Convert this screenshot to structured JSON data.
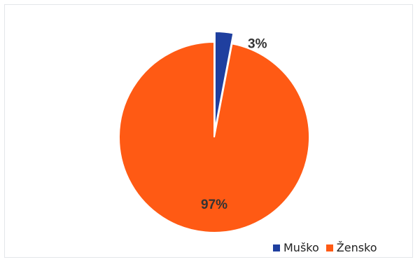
{
  "chart_data": {
    "type": "pie",
    "title": "",
    "slices": [
      {
        "name": "Muško",
        "value": 3,
        "label": "3%",
        "color": "#1f3f9f"
      },
      {
        "name": "Žensko",
        "value": 97,
        "label": "97%",
        "color": "#ff5a14"
      }
    ],
    "start_angle_deg": 0,
    "direction": "clockwise",
    "exploded_slice": "Muško",
    "legend_position": "bottom-right",
    "label_color": "#333333"
  }
}
